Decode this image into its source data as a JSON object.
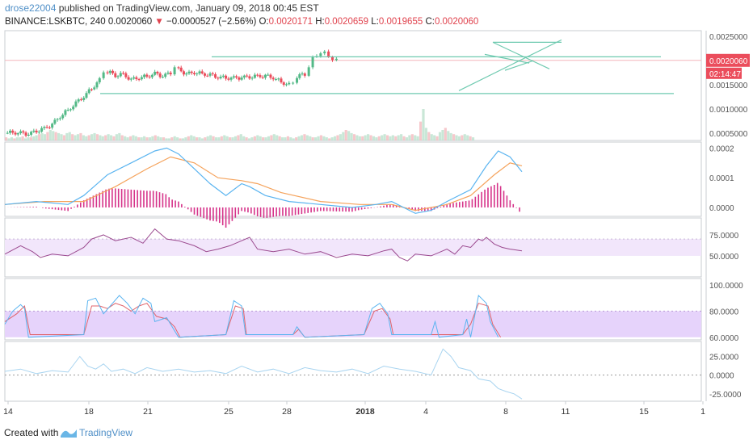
{
  "header": {
    "author": "drose22004",
    "published": "published on TradingView.com, January 09, 2018 00:45 EST",
    "symbol": "BINANCE:LSKBTC, 240",
    "last": "0.0020060",
    "arrow": "▼",
    "change": "−0.0000527 (−2.56%)",
    "o_label": "O:",
    "o": "0.0020171",
    "h_label": "H:",
    "h": "0.0020659",
    "l_label": "L:",
    "l": "0.0019655",
    "c_label": "C:",
    "c": "0.0020060"
  },
  "footer": {
    "created": "Created with",
    "brand": "TradingView"
  },
  "colors": {
    "up": "#53b987",
    "down": "#eb4d5c",
    "macd": "#5ab4f0",
    "signal": "#f5a35c",
    "hist": "#d6338a",
    "rsi": "#9b4a8f",
    "rsi_band": "#f2e6fb",
    "stoch_band": "#e6d3fb",
    "stoch_k": "#5ab4f0",
    "stoch_d": "#e0636b",
    "trendline": "#6fcab0",
    "osc": "#a8d4f0",
    "price_label": "#eb4d5c"
  },
  "chart_data": {
    "type": "candlestick",
    "symbol": "BINANCE:LSKBTC",
    "interval": "240",
    "x_ticks": [
      "14",
      "18",
      "21",
      "25",
      "28",
      "2018",
      "4",
      "8",
      "11",
      "15",
      "1"
    ],
    "price_axis": {
      "ticks": [
        "0.0025000",
        "0.0020000",
        "0.0015000",
        "0.0010000",
        "0.0005000"
      ],
      "ylim": [
        0.00035,
        0.00262
      ],
      "last_price_label": "0.0020060",
      "countdown_label": "02:14:47",
      "close_path": [
        [
          0,
          0.0005
        ],
        [
          10,
          0.00052
        ],
        [
          20,
          0.0005
        ],
        [
          30,
          0.00048
        ],
        [
          40,
          0.00055
        ],
        [
          50,
          0.0006
        ],
        [
          60,
          0.00068
        ],
        [
          70,
          0.00085
        ],
        [
          80,
          0.00098
        ],
        [
          90,
          0.00112
        ],
        [
          100,
          0.00126
        ],
        [
          110,
          0.00143
        ],
        [
          120,
          0.0016
        ],
        [
          125,
          0.00175
        ],
        [
          130,
          0.00178
        ],
        [
          140,
          0.0017
        ],
        [
          150,
          0.00172
        ],
        [
          160,
          0.0016
        ],
        [
          170,
          0.00165
        ],
        [
          180,
          0.00168
        ],
        [
          190,
          0.00173
        ],
        [
          200,
          0.00168
        ],
        [
          210,
          0.00175
        ],
        [
          215,
          0.0019
        ],
        [
          220,
          0.00182
        ],
        [
          230,
          0.00172
        ],
        [
          240,
          0.00176
        ],
        [
          250,
          0.00173
        ],
        [
          260,
          0.0017
        ],
        [
          270,
          0.00166
        ],
        [
          280,
          0.00165
        ],
        [
          290,
          0.00164
        ],
        [
          300,
          0.00165
        ],
        [
          310,
          0.00167
        ],
        [
          320,
          0.00168
        ],
        [
          330,
          0.00168
        ],
        [
          340,
          0.00165
        ],
        [
          350,
          0.00156
        ],
        [
          360,
          0.0015
        ],
        [
          365,
          0.00152
        ],
        [
          370,
          0.00168
        ],
        [
          380,
          0.00172
        ],
        [
          385,
          0.0019
        ],
        [
          390,
          0.00205
        ],
        [
          395,
          0.0021
        ],
        [
          400,
          0.00218
        ],
        [
          405,
          0.00215
        ],
        [
          410,
          0.0021
        ],
        [
          415,
          0.00203
        ],
        [
          420,
          0.002
        ]
      ],
      "volume": [
        3,
        2,
        3,
        2,
        3,
        3,
        4,
        2,
        3,
        3,
        4,
        5,
        6,
        7,
        6,
        8,
        10,
        9,
        8,
        7,
        6,
        5,
        7,
        8,
        6,
        5,
        6,
        7,
        5,
        4,
        5,
        6,
        7,
        6,
        5,
        4,
        5,
        6,
        5,
        4,
        6,
        7,
        5,
        4,
        3,
        4,
        5,
        4,
        3,
        3,
        4,
        3,
        3,
        4,
        5,
        4,
        3,
        3,
        2,
        2,
        3,
        4,
        3,
        2,
        2,
        3,
        4,
        5,
        4,
        3,
        3,
        2,
        3,
        4,
        5,
        4,
        3,
        3,
        4,
        5,
        4,
        3,
        3,
        4,
        5,
        6,
        4,
        3,
        2,
        3,
        4,
        5,
        4,
        3,
        3,
        4,
        5,
        6,
        5,
        4,
        3,
        3,
        4,
        3,
        2,
        3,
        4,
        5,
        6,
        5,
        4,
        3,
        3,
        4,
        5,
        4,
        3,
        2,
        3,
        4,
        5,
        6,
        8,
        10,
        9,
        7,
        6,
        5,
        4,
        4,
        5,
        6,
        5,
        4,
        3,
        4,
        5,
        6,
        5,
        4,
        5,
        4,
        5,
        6,
        4,
        3,
        5,
        6,
        5,
        4,
        18,
        30,
        12,
        8,
        6,
        5,
        4,
        8,
        10,
        12,
        9,
        7,
        6,
        5,
        4,
        5,
        6,
        5,
        4,
        3
      ],
      "trendlines": [
        {
          "from": [
            262,
            0.00208
          ],
          "to": [
            818,
            0.00208
          ]
        },
        {
          "from": [
            124,
            0.00132
          ],
          "to": [
            834,
            0.00132
          ]
        },
        {
          "from": [
            568,
            0.00138
          ],
          "to": [
            695,
            0.00243
          ]
        },
        {
          "from": [
            610,
            0.00238
          ],
          "to": [
            680,
            0.00183
          ]
        },
        {
          "from": [
            610,
            0.00238
          ],
          "to": [
            695,
            0.00238
          ]
        },
        {
          "from": [
            625,
            0.0018
          ],
          "to": [
            660,
            0.002
          ]
        },
        {
          "from": [
            600,
            0.00213
          ],
          "to": [
            655,
            0.00195
          ]
        }
      ]
    },
    "macd": {
      "ticks": [
        "0.0002",
        "0.0001",
        "0.0000"
      ],
      "ylim": [
        -3e-05,
        0.00022
      ],
      "macd_path": [
        [
          0,
          1e-05
        ],
        [
          40,
          2e-05
        ],
        [
          80,
          1e-05
        ],
        [
          100,
          4e-05
        ],
        [
          130,
          0.00011
        ],
        [
          160,
          0.00015
        ],
        [
          190,
          0.00019
        ],
        [
          205,
          0.0002
        ],
        [
          220,
          0.00018
        ],
        [
          240,
          0.00013
        ],
        [
          260,
          8e-05
        ],
        [
          280,
          4e-05
        ],
        [
          300,
          8e-05
        ],
        [
          310,
          7e-05
        ],
        [
          330,
          4e-05
        ],
        [
          360,
          2e-05
        ],
        [
          400,
          1e-05
        ],
        [
          440,
          0.0
        ],
        [
          470,
          1e-05
        ],
        [
          490,
          2e-05
        ],
        [
          520,
          -2e-05
        ],
        [
          540,
          -1e-05
        ],
        [
          560,
          2e-05
        ],
        [
          590,
          6e-05
        ],
        [
          610,
          0.00014
        ],
        [
          625,
          0.00019
        ],
        [
          640,
          0.00017
        ],
        [
          655,
          0.00012
        ]
      ],
      "signal_path": [
        [
          0,
          1e-05
        ],
        [
          50,
          2e-05
        ],
        [
          100,
          2e-05
        ],
        [
          140,
          7e-05
        ],
        [
          180,
          0.00013
        ],
        [
          210,
          0.00017
        ],
        [
          240,
          0.00015
        ],
        [
          270,
          0.0001
        ],
        [
          300,
          9e-05
        ],
        [
          320,
          8e-05
        ],
        [
          350,
          5e-05
        ],
        [
          400,
          2e-05
        ],
        [
          450,
          1e-05
        ],
        [
          490,
          1e-05
        ],
        [
          520,
          -1e-05
        ],
        [
          560,
          1e-05
        ],
        [
          590,
          4e-05
        ],
        [
          620,
          0.00011
        ],
        [
          640,
          0.00015
        ],
        [
          655,
          0.00014
        ]
      ]
    },
    "rsi": {
      "ticks": [
        "75.0000",
        "50.0000"
      ],
      "ylim": [
        25,
        95
      ],
      "band": [
        50,
        70
      ],
      "path": [
        [
          0,
          52
        ],
        [
          20,
          62
        ],
        [
          35,
          55
        ],
        [
          45,
          48
        ],
        [
          60,
          52
        ],
        [
          80,
          50
        ],
        [
          100,
          60
        ],
        [
          110,
          70
        ],
        [
          125,
          75
        ],
        [
          140,
          68
        ],
        [
          160,
          72
        ],
        [
          175,
          65
        ],
        [
          190,
          82
        ],
        [
          205,
          70
        ],
        [
          220,
          68
        ],
        [
          240,
          62
        ],
        [
          255,
          55
        ],
        [
          270,
          58
        ],
        [
          285,
          62
        ],
        [
          300,
          68
        ],
        [
          310,
          72
        ],
        [
          320,
          58
        ],
        [
          340,
          55
        ],
        [
          360,
          58
        ],
        [
          380,
          52
        ],
        [
          400,
          55
        ],
        [
          420,
          48
        ],
        [
          440,
          52
        ],
        [
          460,
          50
        ],
        [
          480,
          56
        ],
        [
          490,
          58
        ],
        [
          500,
          48
        ],
        [
          510,
          44
        ],
        [
          520,
          52
        ],
        [
          540,
          50
        ],
        [
          560,
          58
        ],
        [
          570,
          52
        ],
        [
          580,
          62
        ],
        [
          590,
          60
        ],
        [
          600,
          70
        ],
        [
          605,
          68
        ],
        [
          610,
          72
        ],
        [
          620,
          64
        ],
        [
          630,
          60
        ],
        [
          640,
          58
        ],
        [
          655,
          56
        ]
      ]
    },
    "stoch": {
      "ticks": [
        "100.0000",
        "80.0000",
        "60.0000"
      ],
      "ylim": [
        58,
        105
      ],
      "band": [
        60,
        80
      ],
      "k_path": [
        [
          0,
          70
        ],
        [
          10,
          80
        ],
        [
          20,
          85
        ],
        [
          25,
          82
        ],
        [
          30,
          60
        ],
        [
          100,
          62
        ],
        [
          105,
          88
        ],
        [
          115,
          90
        ],
        [
          125,
          78
        ],
        [
          135,
          85
        ],
        [
          145,
          92
        ],
        [
          155,
          86
        ],
        [
          165,
          78
        ],
        [
          175,
          90
        ],
        [
          185,
          86
        ],
        [
          190,
          72
        ],
        [
          205,
          75
        ],
        [
          215,
          65
        ],
        [
          220,
          60
        ],
        [
          280,
          62
        ],
        [
          290,
          88
        ],
        [
          300,
          84
        ],
        [
          305,
          62
        ],
        [
          365,
          62
        ],
        [
          370,
          68
        ],
        [
          380,
          60
        ],
        [
          455,
          62
        ],
        [
          465,
          82
        ],
        [
          475,
          86
        ],
        [
          485,
          78
        ],
        [
          490,
          62
        ],
        [
          540,
          62
        ],
        [
          545,
          72
        ],
        [
          550,
          60
        ],
        [
          580,
          62
        ],
        [
          585,
          74
        ],
        [
          590,
          60
        ],
        [
          600,
          92
        ],
        [
          610,
          86
        ],
        [
          615,
          72
        ],
        [
          625,
          60
        ]
      ],
      "d_path": [
        [
          0,
          72
        ],
        [
          15,
          78
        ],
        [
          25,
          84
        ],
        [
          32,
          62
        ],
        [
          100,
          62
        ],
        [
          110,
          84
        ],
        [
          120,
          84
        ],
        [
          130,
          82
        ],
        [
          140,
          86
        ],
        [
          150,
          84
        ],
        [
          160,
          80
        ],
        [
          170,
          84
        ],
        [
          180,
          86
        ],
        [
          192,
          76
        ],
        [
          205,
          74
        ],
        [
          215,
          68
        ],
        [
          222,
          60
        ],
        [
          280,
          62
        ],
        [
          292,
          84
        ],
        [
          302,
          82
        ],
        [
          306,
          62
        ],
        [
          365,
          62
        ],
        [
          372,
          66
        ],
        [
          380,
          60
        ],
        [
          455,
          62
        ],
        [
          468,
          80
        ],
        [
          478,
          82
        ],
        [
          488,
          74
        ],
        [
          492,
          62
        ],
        [
          580,
          62
        ],
        [
          590,
          70
        ],
        [
          600,
          86
        ],
        [
          612,
          84
        ],
        [
          618,
          70
        ],
        [
          628,
          60
        ]
      ]
    },
    "oscillator": {
      "ticks": [
        "25.0000",
        "0.0000",
        "-25.0000"
      ],
      "ylim": [
        -35,
        45
      ],
      "path": [
        [
          0,
          5
        ],
        [
          20,
          8
        ],
        [
          40,
          2
        ],
        [
          60,
          6
        ],
        [
          80,
          4
        ],
        [
          95,
          25
        ],
        [
          105,
          12
        ],
        [
          115,
          8
        ],
        [
          125,
          15
        ],
        [
          135,
          5
        ],
        [
          150,
          8
        ],
        [
          165,
          2
        ],
        [
          180,
          10
        ],
        [
          200,
          5
        ],
        [
          220,
          8
        ],
        [
          240,
          4
        ],
        [
          260,
          6
        ],
        [
          280,
          2
        ],
        [
          300,
          12
        ],
        [
          320,
          4
        ],
        [
          340,
          8
        ],
        [
          360,
          2
        ],
        [
          380,
          10
        ],
        [
          400,
          6
        ],
        [
          420,
          4
        ],
        [
          440,
          8
        ],
        [
          460,
          2
        ],
        [
          480,
          12
        ],
        [
          500,
          8
        ],
        [
          520,
          5
        ],
        [
          540,
          0
        ],
        [
          555,
          35
        ],
        [
          565,
          25
        ],
        [
          575,
          10
        ],
        [
          590,
          6
        ],
        [
          600,
          -5
        ],
        [
          615,
          -8
        ],
        [
          625,
          -18
        ],
        [
          635,
          -22
        ],
        [
          645,
          -25
        ],
        [
          655,
          -32
        ]
      ]
    }
  }
}
